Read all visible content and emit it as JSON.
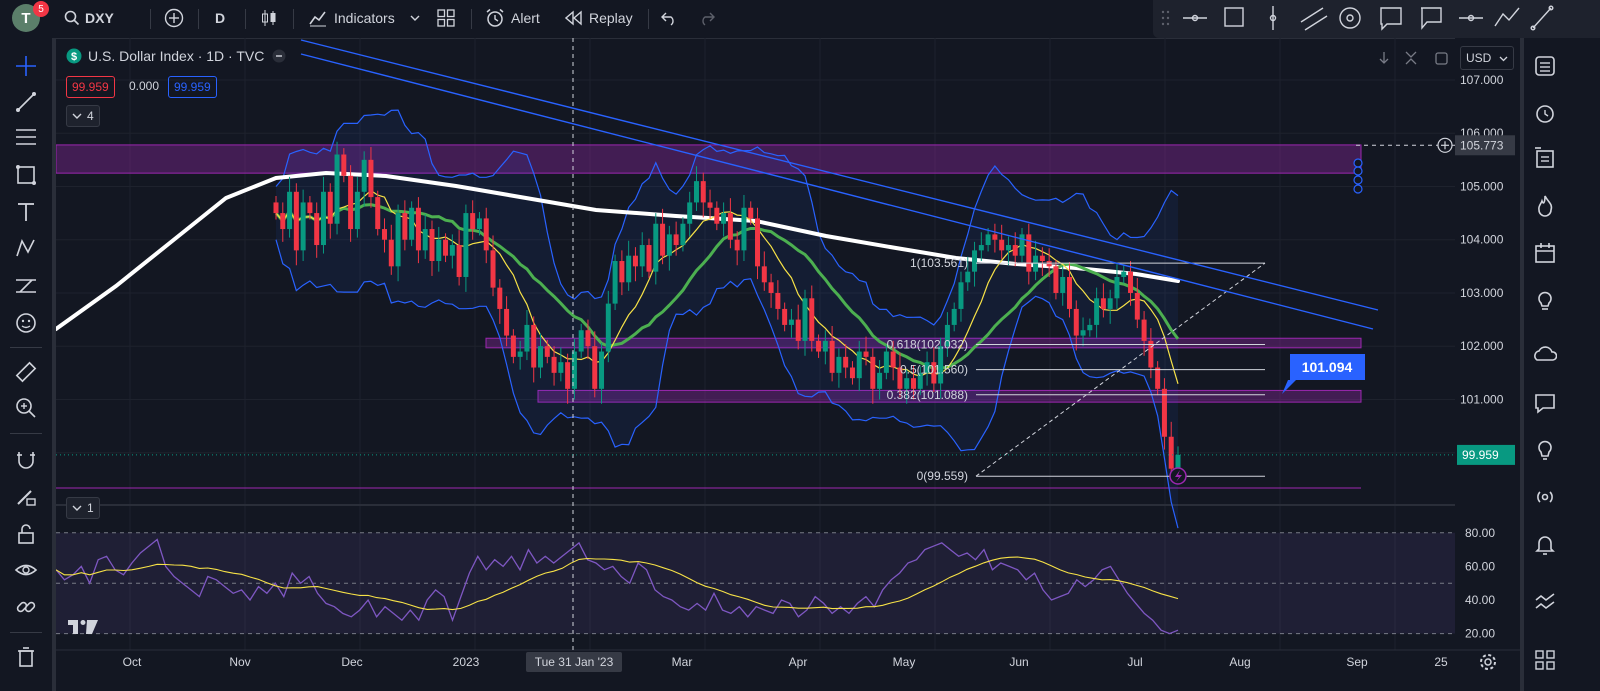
{
  "toolbar": {
    "avatar_letter": "T",
    "notifications": "5",
    "symbol": "DXY",
    "interval": "D",
    "indicators_label": "Indicators",
    "alert_label": "Alert",
    "replay_label": "Replay"
  },
  "legend": {
    "title": "U.S. Dollar Index · 1D · TVC",
    "bid": "99.959",
    "spread": "0.000",
    "ask": "99.959",
    "indicator_count": "4",
    "rsi_pane_count": "1"
  },
  "currency": "USD",
  "price_axis": {
    "labels": [
      "107.000",
      "106.000",
      "105.000",
      "104.000",
      "103.000",
      "102.000",
      "101.000"
    ],
    "current_price": "99.959",
    "crosshair_price": "105.773",
    "callout_price": "101.094"
  },
  "rsi_axis": {
    "labels": [
      "80.00",
      "60.00",
      "40.00",
      "20.00"
    ]
  },
  "time_axis": {
    "labels": [
      "Oct",
      "Nov",
      "Dec",
      "2023",
      "Mar",
      "Apr",
      "May",
      "Jun",
      "Jul",
      "Aug",
      "Sep",
      "25"
    ],
    "crosshair_date": "Tue 31 Jan '23"
  },
  "chart_data": {
    "type": "candlestick",
    "title": "U.S. Dollar Index · 1D · TVC",
    "y_range": [
      99.3,
      107.6
    ],
    "fib_levels": [
      {
        "ratio": "1",
        "label": "1(103.561)",
        "value": 103.561
      },
      {
        "ratio": "0.618",
        "label": "0.618(102.032)",
        "value": 102.032
      },
      {
        "ratio": "0.5",
        "label": "0.5(101.560)",
        "value": 101.56
      },
      {
        "ratio": "0.382",
        "label": "0.382(101.088)",
        "value": 101.088
      },
      {
        "ratio": "0",
        "label": "0(99.559)",
        "value": 99.559
      }
    ],
    "zones": [
      {
        "from": 105.25,
        "to": 105.78
      },
      {
        "from": 101.97,
        "to": 102.15
      },
      {
        "from": 100.95,
        "to": 101.17
      }
    ],
    "closes": [
      104.5,
      104.2,
      104.9,
      103.8,
      104.7,
      104.5,
      103.9,
      104.9,
      104.3,
      105.6,
      105.2,
      104.2,
      104.9,
      105.5,
      104.8,
      104.2,
      104.0,
      103.5,
      104.5,
      104.0,
      104.6,
      103.8,
      104.2,
      103.6,
      104.0,
      103.7,
      103.9,
      103.3,
      104.5,
      104.2,
      104.4,
      103.8,
      103.1,
      102.7,
      102.2,
      101.8,
      101.9,
      102.4,
      101.6,
      102.0,
      101.8,
      101.5,
      101.7,
      101.2,
      101.9,
      102.3,
      102.0,
      101.2,
      101.9,
      102.8,
      103.6,
      103.2,
      103.7,
      103.5,
      103.9,
      103.4,
      104.3,
      103.7,
      104.1,
      103.9,
      104.3,
      104.7,
      105.1,
      104.7,
      104.6,
      104.3,
      104.5,
      104.0,
      103.8,
      104.6,
      104.4,
      103.5,
      103.2,
      103.0,
      102.7,
      102.4,
      102.5,
      102.1,
      102.9,
      102.1,
      101.9,
      102.1,
      101.5,
      101.8,
      101.6,
      101.4,
      101.9,
      101.8,
      101.2,
      101.5,
      101.9,
      101.6,
      101.2,
      101.4,
      101.2,
      101.5,
      101.7,
      101.3,
      102.0,
      102.4,
      102.7,
      103.2,
      103.4,
      103.8,
      103.9,
      104.1,
      104.0,
      103.8,
      103.9,
      103.7,
      104.1,
      103.4,
      103.7,
      103.6,
      103.5,
      103.0,
      103.3,
      102.7,
      102.2,
      102.3,
      102.4,
      102.9,
      102.7,
      102.9,
      103.3,
      103.4,
      103.0,
      102.5,
      102.1,
      101.6,
      101.2,
      100.3,
      99.7,
      99.96
    ],
    "rsi": [
      58,
      52,
      55,
      60,
      50,
      64,
      66,
      58,
      55,
      62,
      68,
      72,
      76,
      60,
      54,
      50,
      46,
      42,
      54,
      52,
      48,
      44,
      46,
      40,
      48,
      44,
      50,
      42,
      56,
      50,
      54,
      44,
      38,
      36,
      32,
      30,
      34,
      40,
      30,
      36,
      32,
      28,
      34,
      28,
      40,
      46,
      42,
      28,
      42,
      56,
      66,
      58,
      64,
      60,
      66,
      58,
      70,
      62,
      66,
      62,
      66,
      70,
      74,
      64,
      62,
      58,
      60,
      54,
      50,
      62,
      58,
      46,
      42,
      40,
      36,
      34,
      38,
      34,
      44,
      34,
      32,
      36,
      30,
      36,
      34,
      32,
      40,
      38,
      30,
      34,
      42,
      38,
      32,
      36,
      32,
      38,
      42,
      36,
      46,
      52,
      56,
      62,
      64,
      70,
      72,
      74,
      70,
      66,
      68,
      64,
      70,
      58,
      62,
      60,
      58,
      52,
      56,
      46,
      40,
      42,
      44,
      52,
      48,
      52,
      58,
      60,
      52,
      44,
      38,
      32,
      28,
      22,
      20,
      22
    ],
    "rsi_range": [
      15,
      90
    ]
  }
}
